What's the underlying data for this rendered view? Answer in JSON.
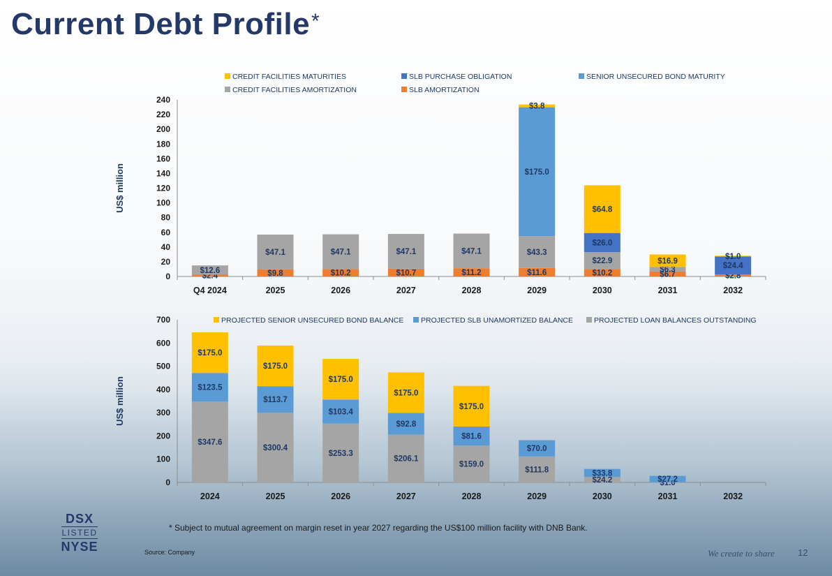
{
  "page": {
    "title": "Current Debt Profile",
    "title_mark": "*",
    "footnote": "*  Subject to mutual agreement on margin reset in year 2027 regarding the US$100 million facility with DNB Bank.",
    "source": "Source: Company",
    "tagline": "We create to share",
    "page_number": "12",
    "logo": {
      "line1": "DSX",
      "line2": "LISTED",
      "line3": "NYSE"
    }
  },
  "chart_data": [
    {
      "type": "bar",
      "stacked": true,
      "ylabel": "US$ million",
      "ylim": [
        0,
        240
      ],
      "yticks": [
        0,
        20,
        40,
        60,
        80,
        100,
        120,
        140,
        160,
        180,
        200,
        220,
        240
      ],
      "categories": [
        "Q4 2024",
        "2025",
        "2026",
        "2027",
        "2028",
        "2029",
        "2030",
        "2031",
        "2032"
      ],
      "legend": [
        {
          "name": "CREDIT FACILITIES MATURITIES",
          "color": "#FFC000"
        },
        {
          "name": "SLB PURCHASE OBLIGATION",
          "color": "#4472C4"
        },
        {
          "name": "SENIOR UNSECURED BOND MATURITY",
          "color": "#5B9BD5"
        },
        {
          "name": "CREDIT FACILITIES AMORTIZATION",
          "color": "#A5A5A5"
        },
        {
          "name": "SLB AMORTIZATION",
          "color": "#ED7D31"
        }
      ],
      "series": [
        {
          "name": "SLB AMORTIZATION",
          "color": "#ED7D31",
          "values": [
            2.4,
            9.8,
            10.2,
            10.7,
            11.2,
            11.6,
            10.2,
            6.7,
            2.8
          ],
          "labels": [
            "$2.4",
            "$9.8",
            "$10.2",
            "$10.7",
            "$11.2",
            "$11.6",
            "$10.2",
            "$6.7",
            "$2.8"
          ]
        },
        {
          "name": "CREDIT FACILITIES AMORTIZATION",
          "color": "#A5A5A5",
          "values": [
            12.6,
            47.1,
            47.1,
            47.1,
            47.1,
            43.3,
            22.9,
            6.3,
            0
          ],
          "labels": [
            "$12.6",
            "$47.1",
            "$47.1",
            "$47.1",
            "$47.1",
            "$43.3",
            "$22.9",
            "$6.3",
            ""
          ]
        },
        {
          "name": "SENIOR UNSECURED BOND MATURITY",
          "color": "#5B9BD5",
          "values": [
            0,
            0,
            0,
            0,
            0,
            175.0,
            0,
            0,
            0
          ],
          "labels": [
            "",
            "",
            "",
            "",
            "",
            "$175.0",
            "",
            "",
            ""
          ]
        },
        {
          "name": "SLB PURCHASE OBLIGATION",
          "color": "#4472C4",
          "values": [
            0,
            0,
            0,
            0,
            0,
            0,
            26.0,
            0,
            24.4
          ],
          "labels": [
            "",
            "",
            "",
            "",
            "",
            "",
            "$26.0",
            "",
            "$24.4"
          ]
        },
        {
          "name": "CREDIT FACILITIES MATURITIES",
          "color": "#FFC000",
          "values": [
            0,
            0,
            0,
            0,
            0,
            3.8,
            64.8,
            16.9,
            1.0
          ],
          "labels": [
            "",
            "",
            "",
            "",
            "",
            "$3.8",
            "$64.8",
            "$16.9",
            "$1.0"
          ]
        }
      ]
    },
    {
      "type": "bar",
      "stacked": true,
      "ylabel": "US$ million",
      "ylim": [
        0,
        700
      ],
      "yticks": [
        0,
        100,
        200,
        300,
        400,
        500,
        600,
        700
      ],
      "categories": [
        "2024",
        "2025",
        "2026",
        "2027",
        "2028",
        "2029",
        "2030",
        "2031",
        "2032"
      ],
      "legend": [
        {
          "name": "PROJECTED SENIOR UNSECURED BOND BALANCE",
          "color": "#FFC000"
        },
        {
          "name": "PROJECTED SLB UNAMORTIZED BALANCE",
          "color": "#5B9BD5"
        },
        {
          "name": "PROJECTED LOAN BALANCES OUTSTANDING",
          "color": "#A5A5A5"
        }
      ],
      "series": [
        {
          "name": "PROJECTED LOAN BALANCES OUTSTANDING",
          "color": "#A5A5A5",
          "values": [
            347.6,
            300.4,
            253.3,
            206.1,
            159.0,
            111.8,
            24.2,
            1.0,
            0
          ],
          "labels": [
            "$347.6",
            "$300.4",
            "$253.3",
            "$206.1",
            "$159.0",
            "$111.8",
            "$24.2",
            "$1.0",
            ""
          ]
        },
        {
          "name": "PROJECTED SLB UNAMORTIZED BALANCE",
          "color": "#5B9BD5",
          "values": [
            123.5,
            113.7,
            103.4,
            92.8,
            81.6,
            70.0,
            33.8,
            27.2,
            0
          ],
          "labels": [
            "$123.5",
            "$113.7",
            "$103.4",
            "$92.8",
            "$81.6",
            "$70.0",
            "$33.8",
            "$27.2",
            ""
          ]
        },
        {
          "name": "PROJECTED SENIOR UNSECURED BOND BALANCE",
          "color": "#FFC000",
          "values": [
            175.0,
            175.0,
            175.0,
            175.0,
            175.0,
            0,
            0,
            0,
            0
          ],
          "labels": [
            "$175.0",
            "$175.0",
            "$175.0",
            "$175.0",
            "$175.0",
            "",
            "",
            "",
            ""
          ]
        }
      ]
    }
  ]
}
